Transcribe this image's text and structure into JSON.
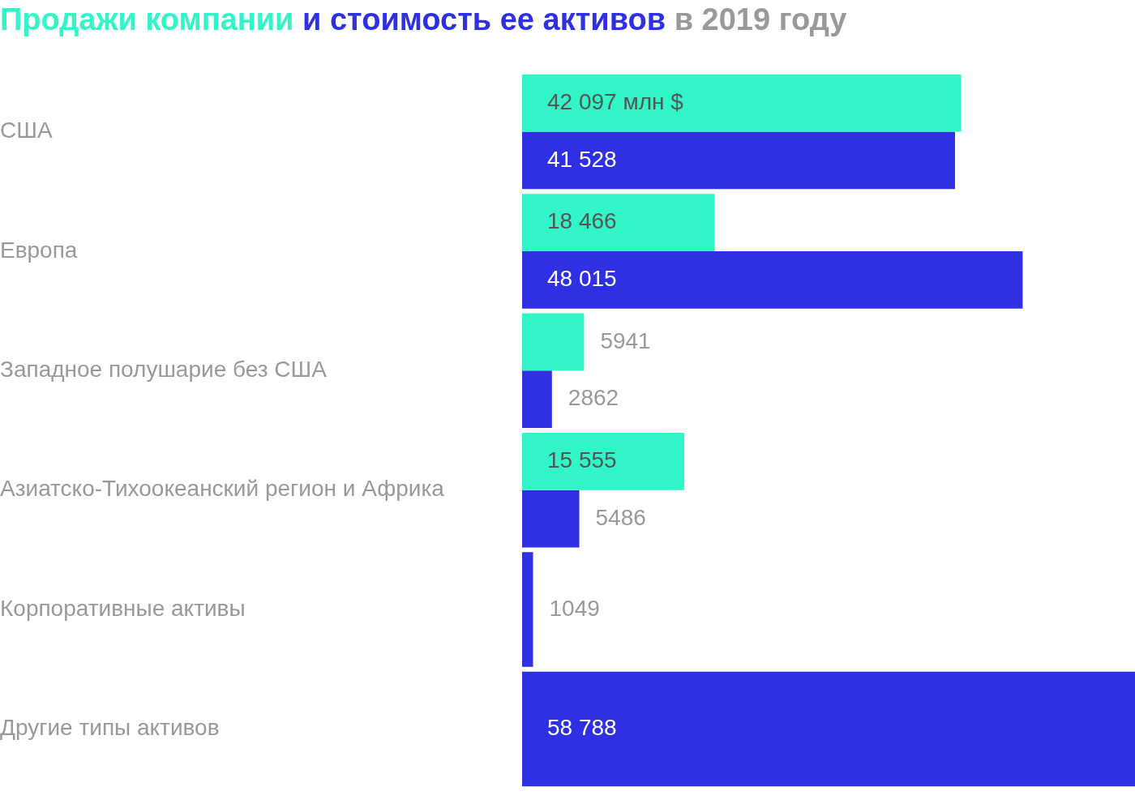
{
  "chart_data": {
    "type": "bar",
    "orientation": "horizontal",
    "title": "в 2019 году",
    "categories": [
      "США",
      "Европа",
      "Западное полушарие без США",
      "Азиатско-Тихоокеанский регион и Африка",
      "Корпоративные активы",
      "Другие типы активов"
    ],
    "series": [
      {
        "name": "Продажи компании",
        "color": "#32f5c8",
        "values": [
          42097,
          18466,
          5941,
          15555,
          null,
          null
        ],
        "value_labels": [
          "42 097 млн $",
          "18 466",
          "5941",
          "15 555",
          null,
          null
        ]
      },
      {
        "name": "и стоимость ее активов",
        "color": "#2f2fe3",
        "values": [
          41528,
          48015,
          2862,
          5486,
          1049,
          58788
        ],
        "value_labels": [
          "41 528",
          "48 015",
          "2862",
          "5486",
          "1049",
          "58 788"
        ]
      }
    ],
    "grid": false,
    "legend": false
  }
}
